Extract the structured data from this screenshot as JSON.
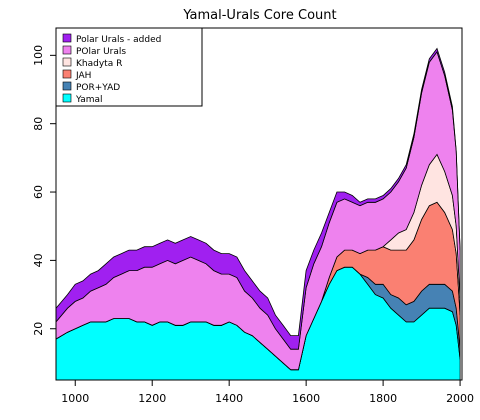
{
  "chart_data": {
    "type": "area",
    "title": "Yamal-Urals Core Count",
    "xlabel": "",
    "ylabel": "",
    "xlim": [
      950,
      2005
    ],
    "ylim": [
      5,
      108
    ],
    "x_ticks": [
      1000,
      1200,
      1400,
      1600,
      1800,
      2000
    ],
    "y_ticks": [
      20,
      40,
      60,
      80,
      100
    ],
    "legend_position": "top-left",
    "grid": false,
    "x": [
      950,
      980,
      1000,
      1020,
      1040,
      1060,
      1080,
      1100,
      1120,
      1140,
      1160,
      1180,
      1200,
      1220,
      1240,
      1260,
      1280,
      1300,
      1320,
      1340,
      1360,
      1380,
      1400,
      1420,
      1440,
      1460,
      1480,
      1500,
      1520,
      1540,
      1560,
      1580,
      1600,
      1620,
      1640,
      1660,
      1680,
      1700,
      1720,
      1740,
      1760,
      1780,
      1800,
      1820,
      1840,
      1860,
      1880,
      1900,
      1920,
      1940,
      1960,
      1980,
      1990,
      1995,
      2000
    ],
    "series": [
      {
        "name": "Yamal",
        "color": "#00FFFF",
        "values": [
          17,
          19,
          20,
          21,
          22,
          22,
          22,
          23,
          23,
          23,
          22,
          22,
          21,
          22,
          22,
          21,
          21,
          22,
          22,
          22,
          21,
          21,
          22,
          21,
          19,
          18,
          16,
          14,
          12,
          10,
          8,
          8,
          18,
          23,
          28,
          33,
          37,
          38,
          38,
          36,
          33,
          30,
          29,
          26,
          24,
          22,
          22,
          24,
          26,
          26,
          26,
          25,
          21,
          16,
          11
        ]
      },
      {
        "name": "POR+YAD",
        "color": "#4682B4",
        "values": [
          0,
          0,
          0,
          0,
          0,
          0,
          0,
          0,
          0,
          0,
          0,
          0,
          0,
          0,
          0,
          0,
          0,
          0,
          0,
          0,
          0,
          0,
          0,
          0,
          0,
          0,
          0,
          0,
          0,
          0,
          0,
          0,
          0,
          0,
          0,
          0,
          0,
          0,
          0,
          0,
          2,
          3,
          4,
          4,
          5,
          5,
          6,
          7,
          7,
          7,
          7,
          6,
          5,
          4,
          3
        ]
      },
      {
        "name": "JAH",
        "color": "#FA8072",
        "values": [
          0,
          0,
          0,
          0,
          0,
          0,
          0,
          0,
          0,
          0,
          0,
          0,
          0,
          0,
          0,
          0,
          0,
          0,
          0,
          0,
          0,
          0,
          0,
          0,
          0,
          0,
          0,
          0,
          0,
          0,
          0,
          0,
          0,
          0,
          0,
          2,
          4,
          5,
          5,
          6,
          8,
          10,
          11,
          13,
          14,
          16,
          18,
          21,
          23,
          24,
          21,
          18,
          16,
          13,
          10
        ]
      },
      {
        "name": "Khadyta R",
        "color": "#FFE4E1",
        "values": [
          0,
          0,
          0,
          0,
          0,
          0,
          0,
          0,
          0,
          0,
          0,
          0,
          0,
          0,
          0,
          0,
          0,
          0,
          0,
          0,
          0,
          0,
          0,
          0,
          0,
          0,
          0,
          0,
          0,
          0,
          0,
          0,
          0,
          0,
          0,
          0,
          0,
          0,
          0,
          0,
          0,
          0,
          0,
          3,
          5,
          6,
          8,
          10,
          12,
          14,
          12,
          10,
          8,
          6,
          5
        ]
      },
      {
        "name": "POlar Urals",
        "color": "#EE82EE",
        "values": [
          5,
          7,
          8,
          8,
          9,
          10,
          11,
          12,
          13,
          14,
          15,
          16,
          17,
          17,
          18,
          18,
          19,
          19,
          18,
          17,
          16,
          15,
          14,
          14,
          12,
          11,
          10,
          10,
          8,
          7,
          6,
          6,
          14,
          16,
          16,
          16,
          16,
          15,
          14,
          14,
          14,
          14,
          14,
          14,
          15,
          18,
          22,
          27,
          30,
          30,
          28,
          25,
          22,
          18,
          14
        ]
      },
      {
        "name": "Polar Urals - added",
        "color": "#A020F0",
        "values": [
          4,
          4,
          5,
          5,
          5,
          5,
          6,
          6,
          6,
          6,
          6,
          6,
          6,
          6,
          6,
          6,
          6,
          6,
          6,
          6,
          6,
          6,
          6,
          6,
          6,
          5,
          5,
          5,
          4,
          4,
          4,
          4,
          5,
          4,
          4,
          3,
          3,
          2,
          2,
          1,
          1,
          1,
          1,
          1,
          1,
          1,
          1,
          1,
          1,
          1,
          1,
          1,
          0,
          0,
          0
        ]
      }
    ],
    "legend_entries": [
      "Polar Urals - added",
      "POlar Urals",
      "Khadyta R",
      "JAH",
      "POR+YAD",
      "Yamal"
    ]
  }
}
